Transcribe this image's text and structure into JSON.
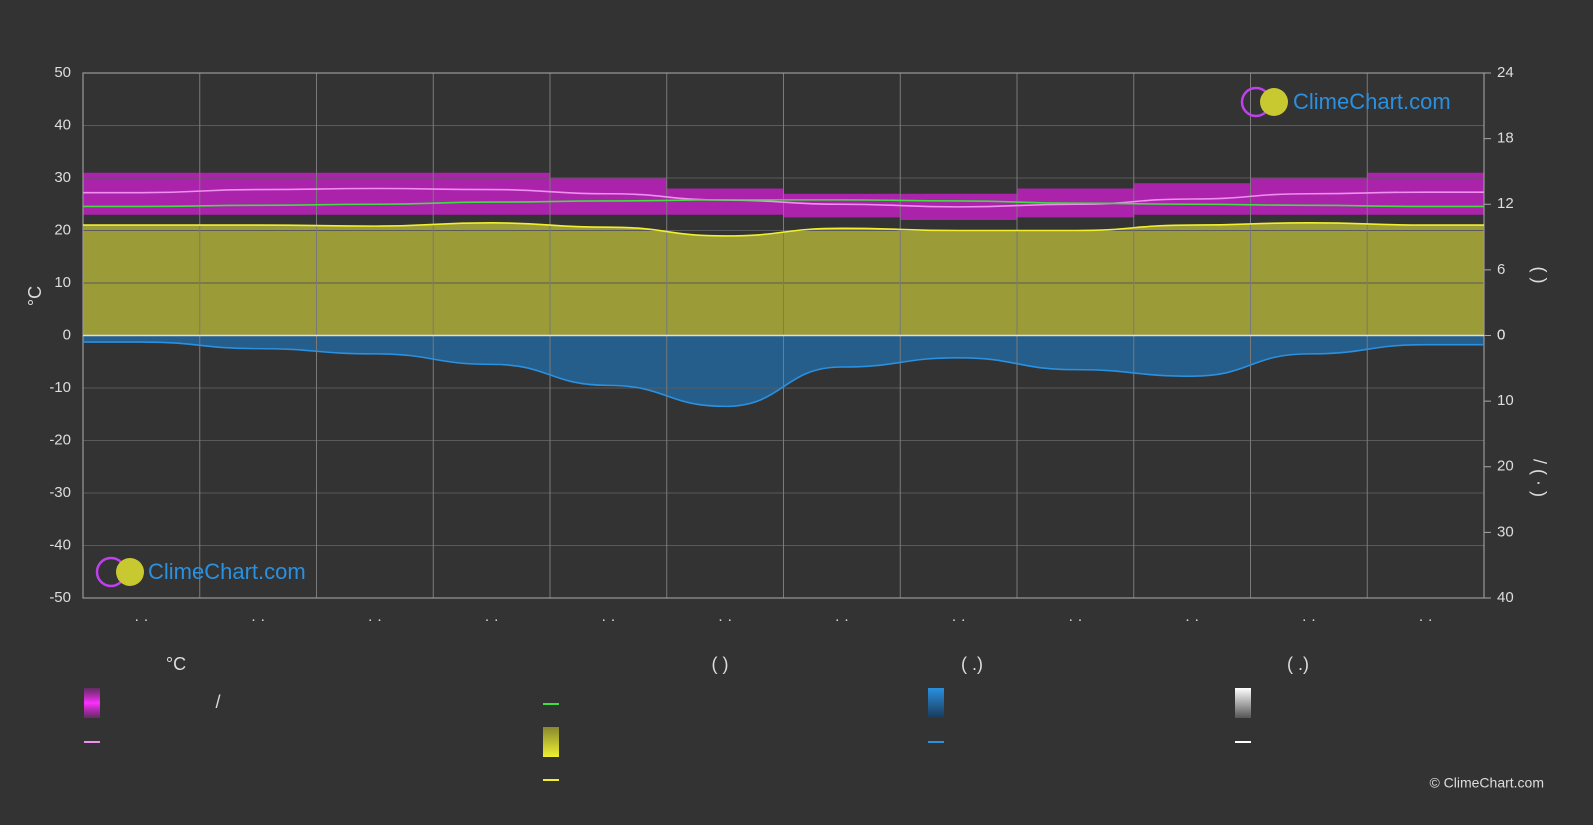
{
  "chart_data": {
    "type": "climate",
    "categories": [
      "· ·",
      "· ·",
      "· ·",
      "· ·",
      "· ·",
      "· ·",
      "· ·",
      "· ·",
      "· ·",
      "· ·",
      "· ·",
      "· ·"
    ],
    "ylabel": "°C",
    "ylim": [
      -50,
      50
    ],
    "yticks": [
      -50,
      -40,
      -30,
      -20,
      -10,
      0,
      10,
      20,
      30,
      40,
      50
    ],
    "y2lim": [
      0,
      24
    ],
    "y2ticks": [
      0,
      6,
      12,
      18,
      24
    ],
    "y3lim": [
      0,
      40
    ],
    "y3ticks": [
      0,
      10,
      20,
      30,
      40
    ],
    "y2label": "(          )",
    "y3label": "/      (  ·  )",
    "grid": true,
    "series": [
      {
        "kind": "band",
        "color": "#d41fd4",
        "high": [
          31,
          31,
          31,
          31,
          30,
          28,
          27,
          27,
          28,
          29,
          30,
          31
        ],
        "low": [
          23,
          23,
          23,
          23,
          23,
          23,
          22.5,
          22,
          22.5,
          23,
          23,
          23
        ]
      },
      {
        "kind": "line",
        "color": "#f08ff0",
        "values": [
          27.2,
          27.8,
          28,
          27.8,
          27,
          25.8,
          25,
          24.5,
          25,
          26,
          27,
          27.3
        ]
      },
      {
        "kind": "area",
        "axis": "y2",
        "color": "#c8c83a",
        "values": [
          10.1,
          10.1,
          10.0,
          10.3,
          9.9,
          9.1,
          9.8,
          9.6,
          9.6,
          10.1,
          10.3,
          10.1
        ]
      },
      {
        "kind": "line",
        "axis": "y2",
        "color": "#3ee03e",
        "values": [
          11.8,
          11.9,
          12.0,
          12.2,
          12.3,
          12.4,
          12.4,
          12.3,
          12.1,
          12.0,
          11.9,
          11.8
        ]
      },
      {
        "kind": "line",
        "axis": "y2",
        "color": "#f0f030",
        "values": [
          10.1,
          10.1,
          10.0,
          10.3,
          9.9,
          9.1,
          9.8,
          9.6,
          9.6,
          10.1,
          10.3,
          10.1
        ]
      },
      {
        "kind": "area",
        "axis": "y3",
        "color": "#1f6fb0",
        "values": [
          1.0,
          2.0,
          2.8,
          4.4,
          7.6,
          10.8,
          4.8,
          3.4,
          5.2,
          6.2,
          2.8,
          1.4
        ]
      },
      {
        "kind": "line",
        "axis": "y3",
        "color": "#2a90e0",
        "values": [
          1.0,
          2.0,
          2.8,
          4.4,
          7.6,
          10.8,
          4.8,
          3.4,
          5.2,
          6.2,
          2.8,
          1.4
        ]
      }
    ],
    "legend": {
      "headings": [
        "°C",
        "(          )",
        "(    .)",
        "(    .)"
      ],
      "note": "/"
    },
    "watermark": "ClimeChart.com",
    "copyright": "© ClimeChart.com"
  }
}
